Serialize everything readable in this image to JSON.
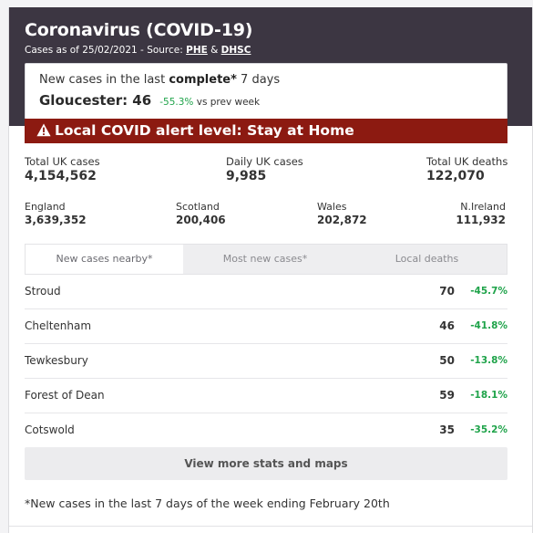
{
  "header": {
    "title": "Coronavirus (COVID-19)",
    "subtitle_prefix": "Cases as of 25/02/2021 - Source: ",
    "source_1": "PHE",
    "source_sep": " & ",
    "source_2": "DHSC"
  },
  "local_cases": {
    "line_prefix": "New cases in the last ",
    "line_bold": "complete*",
    "line_suffix": " 7 days",
    "place": "Gloucester:",
    "count": "46",
    "pct_change": "-55.3%",
    "vs_text": " vs prev week"
  },
  "alert": {
    "icon": "warning-icon",
    "text": "Local COVID alert level: Stay at Home",
    "bg_color": "#8c1a11"
  },
  "uk_stats": {
    "total_cases": {
      "label": "Total UK cases",
      "value": "4,154,562"
    },
    "daily_cases": {
      "label": "Daily UK cases",
      "value": "9,985"
    },
    "total_deaths": {
      "label": "Total UK deaths",
      "value": "122,070"
    }
  },
  "nations": [
    {
      "label": "England",
      "value": "3,639,352"
    },
    {
      "label": "Scotland",
      "value": "200,406"
    },
    {
      "label": "Wales",
      "value": "202,872"
    },
    {
      "label": "N.Ireland",
      "value": "111,932"
    }
  ],
  "tabs": [
    {
      "label": "New cases nearby*",
      "active": true
    },
    {
      "label": "Most new cases*",
      "active": false
    },
    {
      "label": "Local deaths",
      "active": false
    }
  ],
  "rows": [
    {
      "name": "Stroud",
      "cases": "70",
      "change": "-45.7%"
    },
    {
      "name": "Cheltenham",
      "cases": "46",
      "change": "-41.8%"
    },
    {
      "name": "Tewkesbury",
      "cases": "50",
      "change": "-13.8%"
    },
    {
      "name": "Forest of Dean",
      "cases": "59",
      "change": "-18.1%"
    },
    {
      "name": "Cotswold",
      "cases": "35",
      "change": "-35.2%"
    }
  ],
  "more_button": "View more stats and maps",
  "footnote": "*New cases in the last 7 days of the week ending February 20th",
  "colors": {
    "header_bg": "#3c3642",
    "positive_change": "#1fa34a"
  }
}
